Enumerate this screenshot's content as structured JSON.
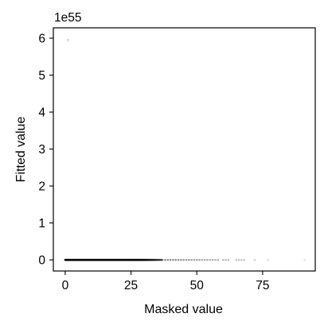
{
  "chart_data": {
    "type": "scatter",
    "title": "",
    "xlabel": "Masked value",
    "ylabel": "Fitted value",
    "y_offset_label": "1e55",
    "xlim": [
      -4.5,
      95
    ],
    "ylim": [
      -0.3,
      6.28
    ],
    "x_ticks": [
      0,
      25,
      50,
      75
    ],
    "x_tick_labels": [
      "0",
      "25",
      "50",
      "75"
    ],
    "y_ticks": [
      0,
      1,
      2,
      3,
      4,
      5,
      6
    ],
    "y_tick_labels": [
      "0",
      "1",
      "2",
      "3",
      "4",
      "5",
      "6"
    ],
    "grid": false,
    "point_color": "#000000",
    "outlier": {
      "x": 1,
      "y": 5.95
    },
    "dense_range": [
      0,
      37
    ],
    "sparse_x": [
      38,
      39,
      40,
      41,
      42,
      43,
      44,
      45,
      46,
      47,
      48,
      49,
      50,
      51,
      52,
      53,
      54,
      55,
      56,
      57,
      58,
      60,
      61,
      62,
      65,
      66,
      67,
      68,
      72,
      77,
      91
    ]
  }
}
